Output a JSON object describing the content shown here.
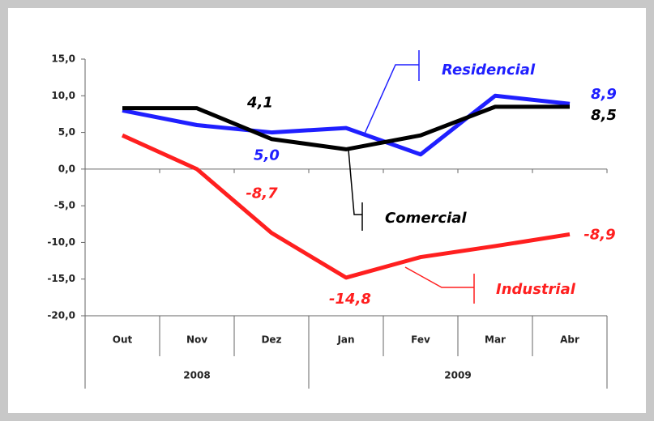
{
  "chart_data": {
    "type": "line",
    "categories": [
      "Out",
      "Nov",
      "Dez",
      "Jan",
      "Fev",
      "Mar",
      "Abr"
    ],
    "x_groups": [
      {
        "label": "2008",
        "count": 3
      },
      {
        "label": "2009",
        "count": 4
      }
    ],
    "series": [
      {
        "name": "Residencial",
        "color": "#1f1fff",
        "values": [
          8.0,
          6.0,
          5.0,
          5.6,
          2.0,
          10.0,
          8.9
        ],
        "value_labels": [
          null,
          null,
          "5,0",
          null,
          null,
          null,
          "8,9"
        ]
      },
      {
        "name": "Comercial",
        "color": "#000000",
        "values": [
          8.3,
          8.3,
          4.1,
          2.7,
          4.6,
          8.5,
          8.5
        ],
        "value_labels": [
          null,
          null,
          "4,1",
          null,
          null,
          null,
          "8,5"
        ]
      },
      {
        "name": "Industrial",
        "color": "#ff1f1f",
        "values": [
          4.6,
          0.0,
          -8.7,
          -14.8,
          -12.0,
          -10.5,
          -8.9
        ],
        "value_labels": [
          null,
          null,
          "-8,7",
          "-14,8",
          null,
          null,
          "-8,9"
        ]
      }
    ],
    "ylim": [
      -20,
      15
    ],
    "yticks": [
      {
        "value": -20,
        "label": "-20,0"
      },
      {
        "value": -15,
        "label": "-15,0"
      },
      {
        "value": -10,
        "label": "-10,0"
      },
      {
        "value": -5,
        "label": "-5,0"
      },
      {
        "value": 0,
        "label": "0,0"
      },
      {
        "value": 5,
        "label": "5,0"
      },
      {
        "value": 10,
        "label": "10,0"
      },
      {
        "value": 15,
        "label": "15,0"
      }
    ],
    "grid": false
  }
}
